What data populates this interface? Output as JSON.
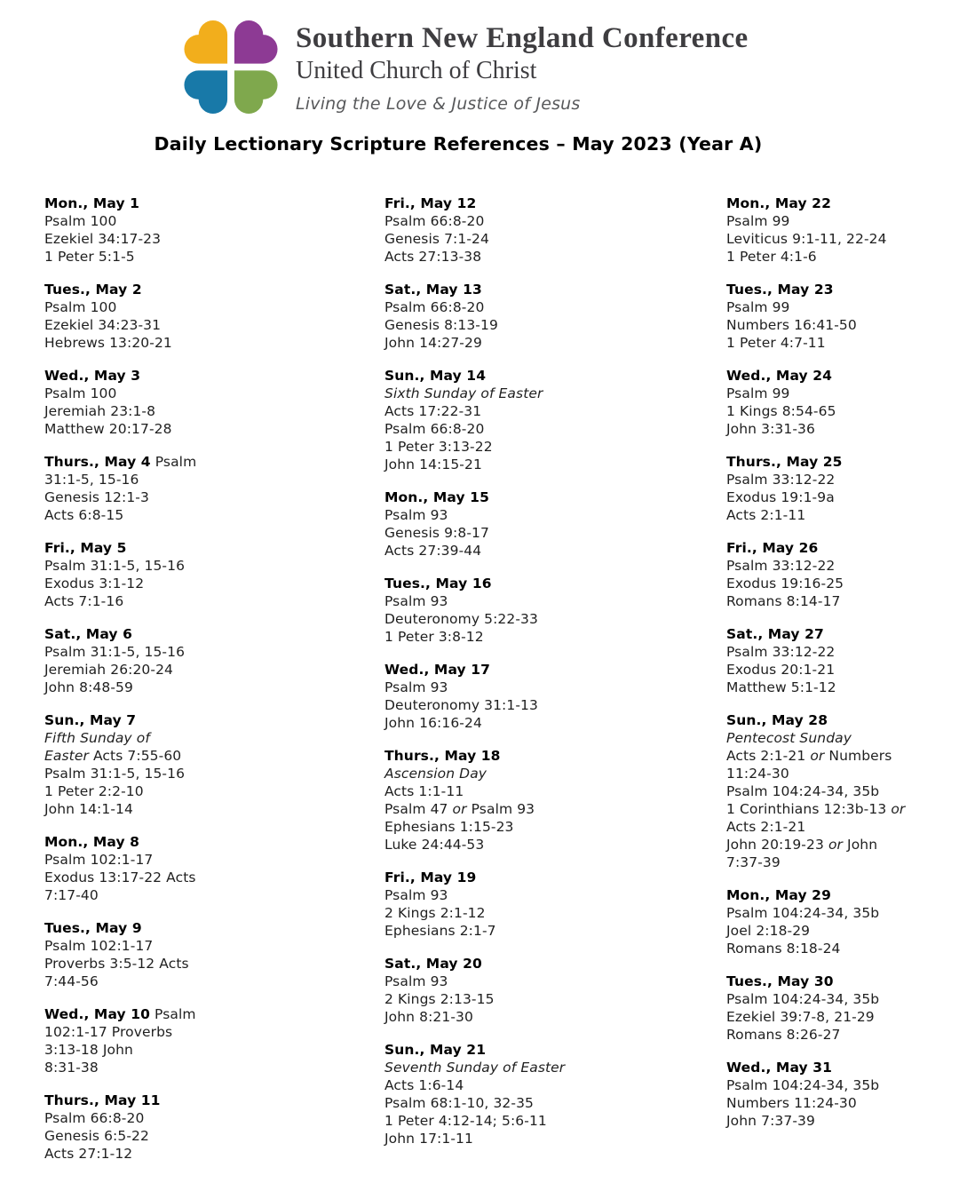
{
  "header": {
    "org_name": "Southern New England Conference",
    "org_sub": "United Church of Christ",
    "tagline": "Living the Love & Justice of Jesus",
    "logo_icon": "four-hearts-clover",
    "logo_colors": {
      "top_left": "#F2AE1C",
      "top_right": "#8D3A94",
      "bottom_left": "#1879A8",
      "bottom_right": "#7FA84D"
    }
  },
  "title": "Daily Lectionary Scripture References – May 2023 (Year A)",
  "columns": [
    {
      "days": [
        {
          "day": "Mon., May 1",
          "day_suffix": "",
          "lines": [
            "Psalm 100",
            "Ezekiel 34:17-23",
            "1 Peter 5:1-5"
          ]
        },
        {
          "day": "Tues., May 2",
          "day_suffix": "",
          "lines": [
            "Psalm 100",
            "Ezekiel 34:23-31",
            "Hebrews 13:20-21"
          ]
        },
        {
          "day": "Wed., May 3",
          "day_suffix": "",
          "lines": [
            "Psalm 100",
            "Jeremiah 23:1-8",
            "Matthew 20:17-28"
          ]
        },
        {
          "day": "Thurs., May 4",
          "day_suffix": " Psalm",
          "lines": [
            "31:1-5, 15-16",
            "Genesis 12:1-3",
            "Acts 6:8-15"
          ]
        },
        {
          "day": "Fri., May 5",
          "day_suffix": "",
          "lines": [
            "Psalm 31:1-5, 15-16",
            "Exodus 3:1-12",
            "Acts 7:1-16"
          ]
        },
        {
          "day": "Sat., May 6",
          "day_suffix": "",
          "lines": [
            "Psalm 31:1-5, 15-16",
            "Jeremiah 26:20-24",
            "John 8:48-59"
          ]
        },
        {
          "day": "Sun., May 7",
          "day_suffix": "",
          "lines": [
            "*Fifth Sunday of*",
            "*Easter* Acts 7:55-60",
            "Psalm 31:1-5, 15-16",
            "1 Peter 2:2-10",
            "John 14:1-14"
          ]
        },
        {
          "day": "Mon., May 8",
          "day_suffix": "",
          "lines": [
            "Psalm 102:1-17",
            "Exodus 13:17-22 Acts",
            "7:17-40"
          ]
        },
        {
          "day": "Tues., May 9",
          "day_suffix": "",
          "lines": [
            "Psalm 102:1-17",
            "Proverbs 3:5-12 Acts",
            "7:44-56"
          ]
        },
        {
          "day": "Wed., May 10",
          "day_suffix": " Psalm",
          "lines": [
            "102:1-17 Proverbs",
            "3:13-18 John",
            "8:31-38"
          ]
        },
        {
          "day": "Thurs., May 11",
          "day_suffix": "",
          "lines": [
            "Psalm 66:8-20",
            "Genesis 6:5-22",
            "Acts 27:1-12"
          ]
        }
      ]
    },
    {
      "days": [
        {
          "day": "Fri., May 12",
          "day_suffix": "",
          "lines": [
            "Psalm 66:8-20",
            "Genesis 7:1-24",
            "Acts 27:13-38"
          ]
        },
        {
          "day": "Sat., May 13",
          "day_suffix": "",
          "lines": [
            "Psalm 66:8-20",
            "Genesis 8:13-19",
            "John 14:27-29"
          ]
        },
        {
          "day": "Sun., May 14",
          "day_suffix": "",
          "lines": [
            "*Sixth Sunday of Easter*",
            "Acts 17:22-31",
            "Psalm 66:8-20",
            "1 Peter 3:13-22",
            "John 14:15-21"
          ]
        },
        {
          "day": "Mon., May 15",
          "day_suffix": "",
          "lines": [
            "Psalm 93",
            "Genesis 9:8-17",
            "Acts 27:39-44"
          ]
        },
        {
          "day": "Tues., May 16",
          "day_suffix": "",
          "lines": [
            "Psalm 93",
            "Deuteronomy 5:22-33",
            "1 Peter 3:8-12"
          ]
        },
        {
          "day": "Wed., May 17",
          "day_suffix": "",
          "lines": [
            "Psalm 93",
            "Deuteronomy 31:1-13",
            "John 16:16-24"
          ]
        },
        {
          "day": "Thurs., May 18",
          "day_suffix": "",
          "lines": [
            "*Ascension Day*",
            "Acts 1:1-11",
            "Psalm 47 *or* Psalm 93",
            "Ephesians 1:15-23",
            "Luke 24:44-53"
          ]
        },
        {
          "day": "Fri., May 19",
          "day_suffix": "",
          "lines": [
            "Psalm 93",
            "2 Kings 2:1-12",
            "Ephesians 2:1-7"
          ]
        },
        {
          "day": "Sat., May 20",
          "day_suffix": "",
          "lines": [
            "Psalm 93",
            "2 Kings 2:13-15",
            "John 8:21-30"
          ]
        },
        {
          "day": "Sun., May 21",
          "day_suffix": "",
          "lines": [
            "*Seventh Sunday of Easter*",
            "Acts 1:6-14",
            "Psalm 68:1-10, 32-35",
            "1 Peter 4:12-14; 5:6-11",
            "John 17:1-11"
          ]
        }
      ]
    },
    {
      "days": [
        {
          "day": "Mon., May 22",
          "day_suffix": "",
          "lines": [
            "Psalm 99",
            "Leviticus 9:1-11, 22-24",
            "1 Peter 4:1-6"
          ]
        },
        {
          "day": "Tues., May 23",
          "day_suffix": "",
          "lines": [
            "Psalm 99",
            "Numbers 16:41-50",
            "1 Peter 4:7-11"
          ]
        },
        {
          "day": "Wed., May 24",
          "day_suffix": "",
          "lines": [
            "Psalm 99",
            "1 Kings 8:54-65",
            "John 3:31-36"
          ]
        },
        {
          "day": "Thurs., May 25",
          "day_suffix": "",
          "lines": [
            "Psalm 33:12-22",
            "Exodus 19:1-9a",
            "Acts 2:1-11"
          ]
        },
        {
          "day": "Fri., May 26",
          "day_suffix": "",
          "lines": [
            "Psalm 33:12-22",
            "Exodus 19:16-25",
            "Romans 8:14-17"
          ]
        },
        {
          "day": "Sat., May 27",
          "day_suffix": "",
          "lines": [
            "Psalm 33:12-22",
            "Exodus 20:1-21",
            "Matthew 5:1-12"
          ]
        },
        {
          "day": "Sun., May 28",
          "day_suffix": "",
          "lines": [
            "*Pentecost Sunday*",
            "Acts 2:1-21 *or* Numbers",
            "11:24-30",
            "Psalm 104:24-34, 35b",
            "1 Corinthians 12:3b-13 *or*",
            "Acts 2:1-21",
            "John 20:19-23 *or* John",
            "7:37-39"
          ]
        },
        {
          "day": "Mon., May 29",
          "day_suffix": "",
          "lines": [
            "Psalm 104:24-34, 35b",
            "Joel 2:18-29",
            "Romans 8:18-24"
          ]
        },
        {
          "day": "Tues., May 30",
          "day_suffix": "",
          "lines": [
            "Psalm 104:24-34, 35b",
            "Ezekiel 39:7-8, 21-29",
            "Romans 8:26-27"
          ]
        },
        {
          "day": "Wed., May 31",
          "day_suffix": "",
          "lines": [
            "Psalm 104:24-34, 35b",
            "Numbers 11:24-30",
            "John 7:37-39"
          ]
        }
      ]
    }
  ]
}
